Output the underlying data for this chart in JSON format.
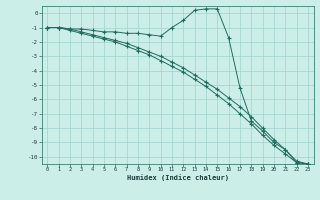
{
  "xlabel": "Humidex (Indice chaleur)",
  "ylabel": "",
  "xlim": [
    -0.5,
    23.5
  ],
  "ylim": [
    -10.5,
    0.5
  ],
  "yticks": [
    0,
    -1,
    -2,
    -3,
    -4,
    -5,
    -6,
    -7,
    -8,
    -9,
    -10
  ],
  "xticks": [
    0,
    1,
    2,
    3,
    4,
    5,
    6,
    7,
    8,
    9,
    10,
    11,
    12,
    13,
    14,
    15,
    16,
    17,
    18,
    19,
    20,
    21,
    22,
    23
  ],
  "background_color": "#cceee8",
  "line_color": "#216b5e",
  "grid_color": "#9ed4cc",
  "line1_x": [
    0,
    1,
    2,
    3,
    4,
    5,
    6,
    7,
    8,
    9,
    10,
    11,
    12,
    13,
    14,
    15,
    16,
    17,
    18,
    19,
    20,
    21,
    22,
    23
  ],
  "line1_y": [
    -1.0,
    -1.0,
    -1.1,
    -1.1,
    -1.2,
    -1.3,
    -1.3,
    -1.4,
    -1.4,
    -1.5,
    -1.6,
    -1.0,
    -0.5,
    0.2,
    0.3,
    0.3,
    -1.7,
    -5.2,
    -7.5,
    -8.2,
    -9.0,
    -9.5,
    -10.4,
    -10.5
  ],
  "line2_x": [
    0,
    1,
    2,
    3,
    4,
    5,
    6,
    7,
    8,
    9,
    10,
    11,
    12,
    13,
    14,
    15,
    16,
    17,
    18,
    19,
    20,
    21,
    22,
    23
  ],
  "line2_y": [
    -1.0,
    -1.0,
    -1.1,
    -1.3,
    -1.5,
    -1.7,
    -1.9,
    -2.1,
    -2.4,
    -2.7,
    -3.0,
    -3.4,
    -3.8,
    -4.3,
    -4.8,
    -5.3,
    -5.9,
    -6.5,
    -7.2,
    -8.0,
    -8.8,
    -9.5,
    -10.3,
    -10.5
  ],
  "line3_x": [
    0,
    1,
    2,
    3,
    4,
    5,
    6,
    7,
    8,
    9,
    10,
    11,
    12,
    13,
    14,
    15,
    16,
    17,
    18,
    19,
    20,
    21,
    22,
    23
  ],
  "line3_y": [
    -1.0,
    -1.0,
    -1.2,
    -1.4,
    -1.6,
    -1.8,
    -2.0,
    -2.3,
    -2.6,
    -2.9,
    -3.3,
    -3.7,
    -4.1,
    -4.6,
    -5.1,
    -5.7,
    -6.3,
    -7.0,
    -7.7,
    -8.5,
    -9.2,
    -9.8,
    -10.4,
    -10.5
  ]
}
